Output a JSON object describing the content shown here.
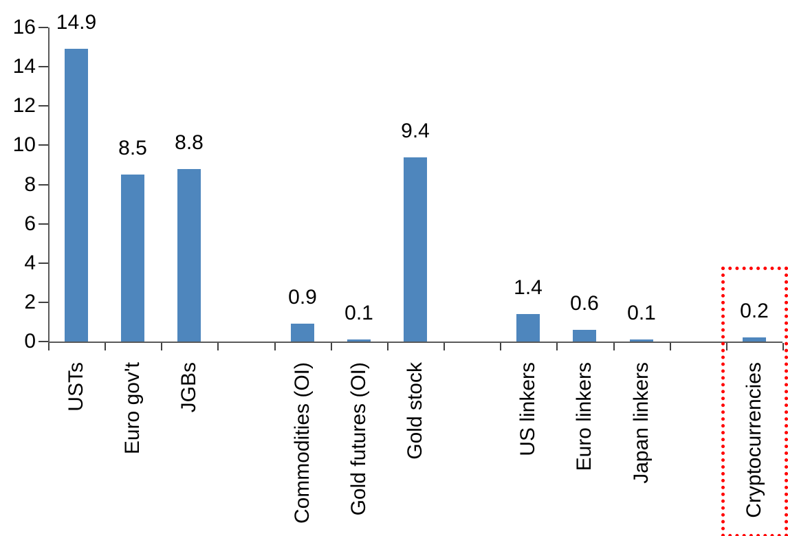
{
  "chart_data": {
    "type": "bar",
    "title": "",
    "xlabel": "",
    "ylabel": "",
    "ylim": [
      0,
      16
    ],
    "yticks": [
      0,
      2,
      4,
      6,
      8,
      10,
      12,
      14,
      16
    ],
    "grid": false,
    "legend": null,
    "bar_color": "#4E86BD",
    "axis_color": "#595959",
    "text_color": "#000000",
    "num_slots": 13,
    "series": [
      {
        "label": "USTs",
        "value": 14.9,
        "value_label": "14.9",
        "slot": 1
      },
      {
        "label": "Euro gov't",
        "value": 8.5,
        "value_label": "8.5",
        "slot": 2
      },
      {
        "label": "JGBs",
        "value": 8.8,
        "value_label": "8.8",
        "slot": 3
      },
      {
        "label": "Commodities (OI)",
        "value": 0.9,
        "value_label": "0.9",
        "slot": 5
      },
      {
        "label": "Gold futures (OI)",
        "value": 0.1,
        "value_label": "0.1",
        "slot": 6
      },
      {
        "label": "Gold stock",
        "value": 9.4,
        "value_label": "9.4",
        "slot": 7
      },
      {
        "label": "US linkers",
        "value": 1.4,
        "value_label": "1.4",
        "slot": 9
      },
      {
        "label": "Euro linkers",
        "value": 0.6,
        "value_label": "0.6",
        "slot": 10
      },
      {
        "label": "Japan linkers",
        "value": 0.1,
        "value_label": "0.1",
        "slot": 11
      },
      {
        "label": "Cryptocurrencies",
        "value": 0.2,
        "value_label": "0.2",
        "slot": 13
      }
    ],
    "highlight": {
      "category": "Cryptocurrencies",
      "shape": "dotted-rectangle",
      "color": "#FF0000"
    }
  }
}
